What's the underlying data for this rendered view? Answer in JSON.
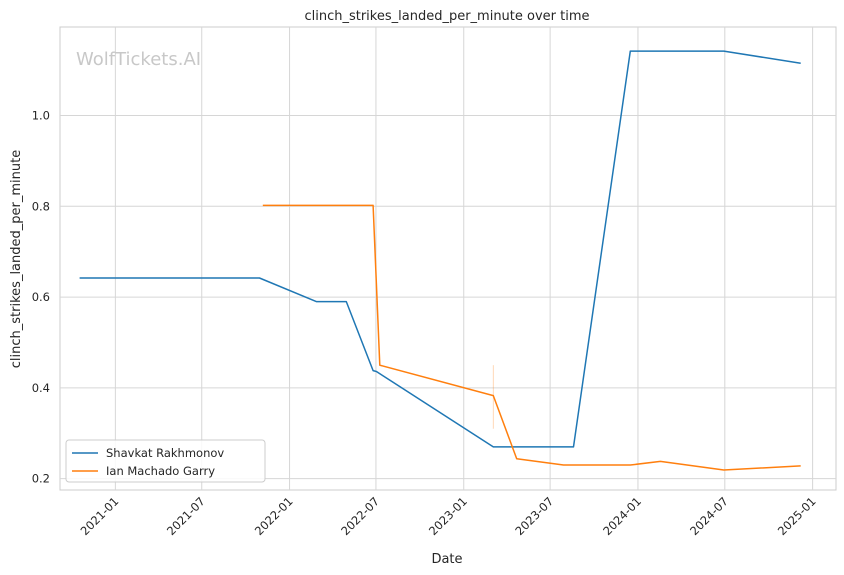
{
  "chart_data": {
    "type": "line",
    "title": "clinch_strikes_landed_per_minute over time",
    "xlabel": "Date",
    "ylabel": "clinch_strikes_landed_per_minute",
    "watermark": "WolfTickets.AI",
    "grid": true,
    "legend_position": "lower-left",
    "xlim": [
      "2020-09-07",
      "2025-02-19"
    ],
    "ylim": [
      0.175,
      1.195
    ],
    "x_ticks": [
      "2021-01",
      "2021-07",
      "2022-01",
      "2022-07",
      "2023-01",
      "2023-07",
      "2024-01",
      "2024-07",
      "2025-01"
    ],
    "y_ticks": [
      "0.2",
      "0.4",
      "0.6",
      "0.8",
      "1.0"
    ],
    "series": [
      {
        "name": "Shavkat Rakhmonov",
        "color": "#1f77b4",
        "x": [
          "2020-10-18",
          "2021-10-30",
          "2022-02-26",
          "2022-04-30",
          "2022-06-25",
          "2022-07-02",
          "2023-03-04",
          "2023-06-10",
          "2023-08-19",
          "2023-12-16",
          "2024-06-29",
          "2024-12-07"
        ],
        "y": [
          0.642,
          0.642,
          0.59,
          0.59,
          0.438,
          0.436,
          0.27,
          0.27,
          0.27,
          1.142,
          1.142,
          1.115
        ]
      },
      {
        "name": "Ian Machado Garry",
        "color": "#ff7f0e",
        "x": [
          "2021-11-06",
          "2022-06-25",
          "2022-07-09",
          "2023-03-04",
          "2023-04-22",
          "2023-07-29",
          "2023-12-16",
          "2024-02-17",
          "2024-06-29",
          "2024-12-07"
        ],
        "y": [
          0.802,
          0.802,
          0.45,
          0.383,
          0.244,
          0.23,
          0.23,
          0.238,
          0.219,
          0.228
        ]
      }
    ]
  }
}
